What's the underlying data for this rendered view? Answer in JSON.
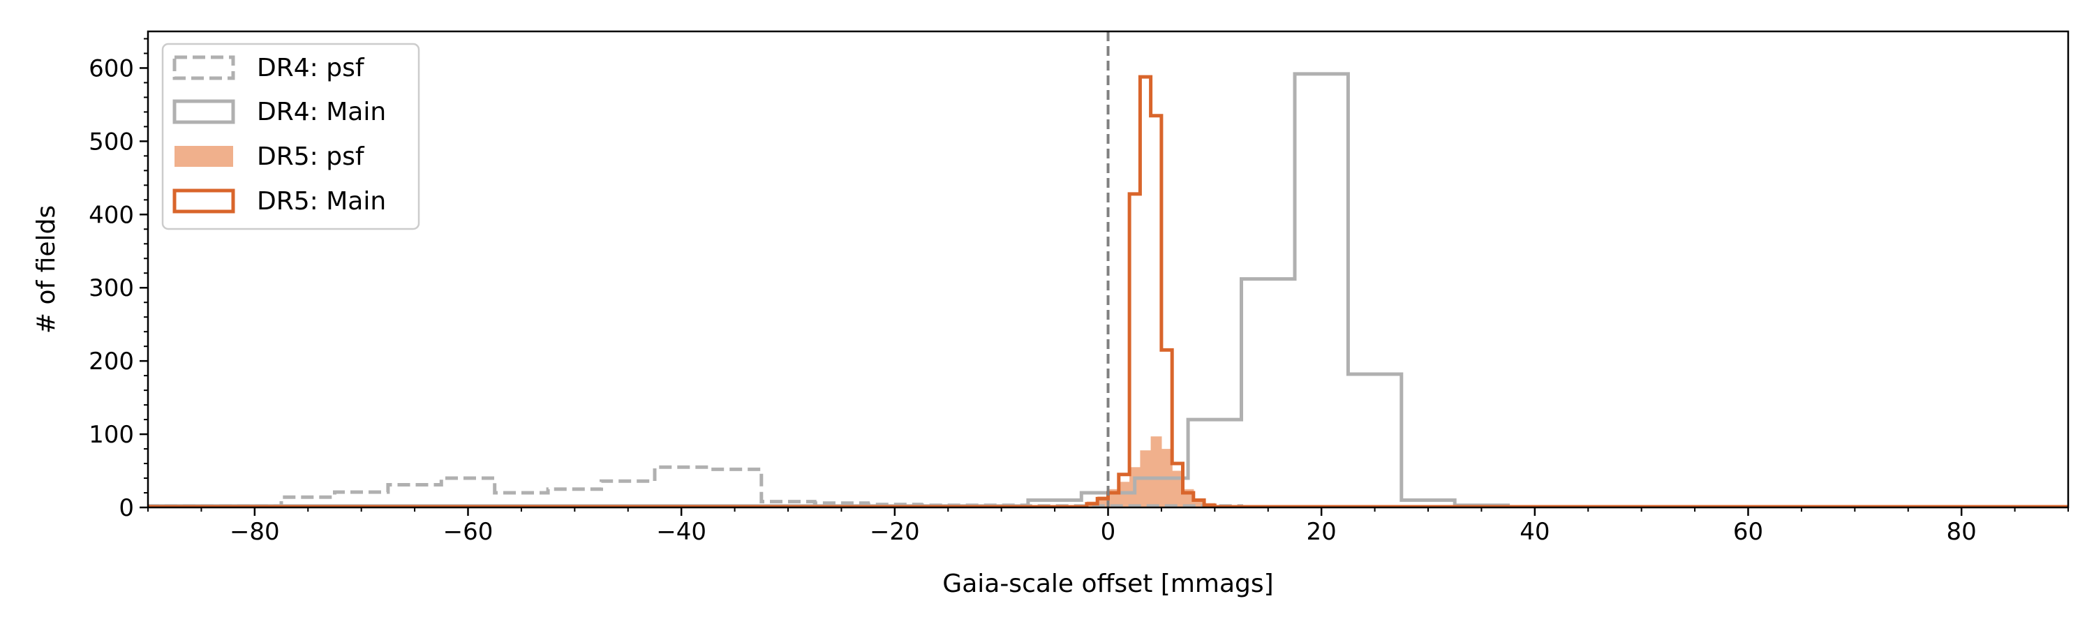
{
  "chart_data": {
    "type": "histogram",
    "xlabel": "Gaia-scale offset [mmags]",
    "ylabel": "# of fields",
    "xlim": [
      -90,
      90
    ],
    "ylim": [
      0,
      650
    ],
    "xticks": [
      -80,
      -60,
      -40,
      -20,
      0,
      20,
      40,
      60,
      80
    ],
    "xtick_labels": [
      "−80",
      "−60",
      "−40",
      "−20",
      "0",
      "20",
      "40",
      "60",
      "80"
    ],
    "yticks": [
      0,
      100,
      200,
      300,
      400,
      500,
      600
    ],
    "ytick_labels": [
      "0",
      "100",
      "200",
      "300",
      "400",
      "500",
      "600"
    ],
    "grid": false,
    "reference_line_x": 0,
    "legend_position": "upper-left",
    "legend": [
      "DR4: psf",
      "DR4: Main",
      "DR5: psf",
      "DR5: Main"
    ],
    "series": [
      {
        "name": "DR4: psf",
        "style": "step-dashed",
        "color": "#b0b0b0",
        "edges": [
          -90,
          -77.5,
          -72.5,
          -67.5,
          -62.5,
          -57.5,
          -52.5,
          -47.5,
          -42.5,
          -37.5,
          -32.5,
          -27.5,
          -22.5,
          -17.5,
          -12.5,
          -7.5,
          -2.5,
          2.5,
          7.5,
          12.5,
          90
        ],
        "values": [
          2,
          14,
          21,
          31,
          40,
          20,
          25,
          36,
          55,
          52,
          8,
          6,
          4,
          3,
          3,
          2,
          2,
          2,
          2,
          1
        ]
      },
      {
        "name": "DR4: Main",
        "style": "step",
        "color": "#b0b0b0",
        "edges": [
          -90,
          -7.5,
          -2.5,
          2.5,
          7.5,
          12.5,
          17.5,
          22.5,
          27.5,
          32.5,
          37.5,
          90
        ],
        "values": [
          2,
          10,
          20,
          40,
          120,
          312,
          592,
          182,
          10,
          3,
          1
        ]
      },
      {
        "name": "DR5: psf",
        "style": "filled",
        "color": "#f0b08c",
        "edges": [
          -2,
          -1,
          0,
          1,
          2,
          3,
          4,
          5,
          6,
          7,
          8,
          9,
          10,
          11
        ],
        "values": [
          8,
          15,
          25,
          35,
          55,
          78,
          97,
          80,
          50,
          25,
          12,
          6,
          3
        ]
      },
      {
        "name": "DR5: Main",
        "style": "step",
        "color": "#d9652b",
        "edges": [
          -90,
          -2,
          -1,
          0,
          1,
          2,
          3,
          4,
          5,
          6,
          7,
          8,
          9,
          10,
          90
        ],
        "values": [
          1,
          5,
          12,
          20,
          45,
          428,
          588,
          535,
          215,
          60,
          20,
          10,
          3,
          1
        ]
      }
    ]
  }
}
